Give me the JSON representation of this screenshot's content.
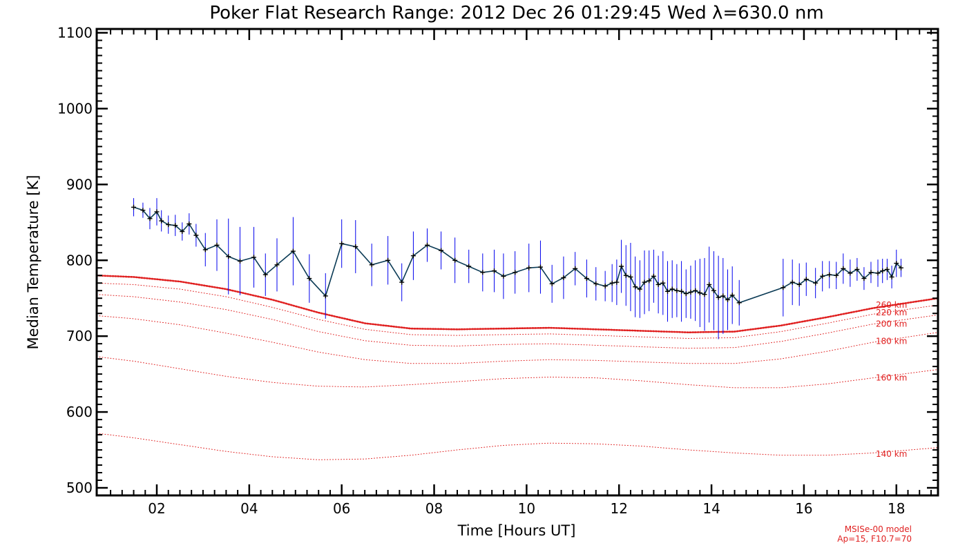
{
  "chart_data": {
    "type": "line",
    "title": "Poker Flat Research Range: 2012 Dec 26 01:29:45 Wed λ=630.0 nm",
    "xlabel": "Time [Hours UT]",
    "ylabel": "Median Temperature [K]",
    "xlim": [
      0.7,
      18.9
    ],
    "ylim": [
      490,
      1105
    ],
    "x_ticks": [
      2,
      4,
      6,
      8,
      10,
      12,
      14,
      16,
      18
    ],
    "x_tick_labels": [
      "02",
      "04",
      "06",
      "08",
      "10",
      "12",
      "14",
      "16",
      "18"
    ],
    "y_ticks": [
      500,
      600,
      700,
      800,
      900,
      1000,
      1100
    ],
    "y_tick_labels": [
      "500",
      "600",
      "700",
      "800",
      "900",
      "1000",
      "1100"
    ],
    "grid": false,
    "colors": {
      "measured": "#0a3a55",
      "error_bars": "#0000ee",
      "model": "#e02020"
    },
    "measured": {
      "x": [
        1.5,
        1.7,
        1.85,
        2.0,
        2.1,
        2.25,
        2.4,
        2.55,
        2.7,
        2.85,
        3.05,
        3.3,
        3.55,
        3.8,
        4.1,
        4.35,
        4.6,
        4.95,
        5.3,
        5.65,
        6.0,
        6.3,
        6.65,
        7.0,
        7.3,
        7.55,
        7.85,
        8.15,
        8.45,
        8.75,
        9.05,
        9.3,
        9.5,
        9.75,
        10.05,
        10.3,
        10.55,
        10.8,
        11.05,
        11.3,
        11.5,
        11.7,
        11.85,
        11.95,
        12.05,
        12.15,
        12.25,
        12.35,
        12.45,
        12.55,
        12.65,
        12.75,
        12.85,
        12.95,
        13.05,
        13.15,
        13.25,
        13.35,
        13.45,
        13.55,
        13.65,
        13.75,
        13.85,
        13.95,
        14.05,
        14.15,
        14.25,
        14.35,
        14.45,
        14.6,
        15.55,
        15.75,
        15.9,
        16.05,
        16.25,
        16.4,
        16.55,
        16.7,
        16.85,
        17.0,
        17.15,
        17.3,
        17.45,
        17.6,
        17.7,
        17.8,
        17.9,
        18.0,
        18.1
      ],
      "y": [
        870,
        866,
        855,
        864,
        852,
        847,
        846,
        838,
        848,
        833,
        814,
        820,
        805,
        799,
        804,
        781,
        794,
        812,
        776,
        753,
        822,
        818,
        794,
        800,
        771,
        806,
        820,
        813,
        800,
        792,
        784,
        786,
        779,
        784,
        790,
        791,
        769,
        777,
        789,
        776,
        769,
        766,
        770,
        771,
        792,
        780,
        778,
        765,
        762,
        771,
        773,
        779,
        768,
        770,
        759,
        762,
        760,
        759,
        756,
        758,
        760,
        757,
        755,
        768,
        760,
        751,
        753,
        748,
        754,
        744,
        764,
        771,
        768,
        775,
        770,
        779,
        781,
        780,
        789,
        783,
        788,
        776,
        784,
        783,
        786,
        788,
        778,
        796,
        790
      ],
      "err": [
        12,
        10,
        14,
        18,
        14,
        12,
        14,
        12,
        14,
        15,
        22,
        34,
        50,
        45,
        40,
        28,
        35,
        45,
        32,
        30,
        32,
        35,
        28,
        32,
        25,
        32,
        22,
        25,
        30,
        22,
        25,
        28,
        30,
        28,
        32,
        35,
        25,
        28,
        22,
        25,
        22,
        20,
        25,
        30,
        35,
        40,
        45,
        40,
        38,
        42,
        40,
        35,
        38,
        42,
        40,
        38,
        35,
        40,
        32,
        35,
        40,
        45,
        48,
        50,
        52,
        55,
        50,
        40,
        38,
        30,
        38,
        30,
        28,
        22,
        20,
        20,
        18,
        18,
        20,
        18,
        15,
        15,
        14,
        18,
        16,
        14,
        15,
        18,
        12
      ]
    },
    "model_curves": [
      {
        "name": "260 km",
        "labels_shown": true,
        "y_at": {
          "x": [
            0.7,
            1.5,
            2.5,
            3.5,
            4.5,
            5.5,
            6.5,
            7.5,
            8.5,
            9.5,
            10.5,
            11.5,
            12.5,
            13.5,
            14.5,
            15.5,
            16.5,
            17.5,
            18.9
          ],
          "y": [
            780,
            778,
            772,
            762,
            748,
            731,
            717,
            710,
            709,
            710,
            711,
            709,
            707,
            705,
            706,
            714,
            725,
            737,
            750
          ]
        }
      },
      {
        "name": "220 km",
        "y_at": {
          "x": [
            0.7,
            1.5,
            2.5,
            3.5,
            4.5,
            5.5,
            6.5,
            7.5,
            8.5,
            9.5,
            10.5,
            11.5,
            12.5,
            13.5,
            14.5,
            15.5,
            16.5,
            17.5,
            18.9
          ],
          "y": [
            770,
            768,
            762,
            752,
            738,
            722,
            709,
            702,
            701,
            702,
            703,
            701,
            699,
            697,
            698,
            706,
            717,
            729,
            741
          ]
        }
      },
      {
        "name": "200 km",
        "y_at": {
          "x": [
            0.7,
            1.5,
            2.5,
            3.5,
            4.5,
            5.5,
            6.5,
            7.5,
            8.5,
            9.5,
            10.5,
            11.5,
            12.5,
            13.5,
            14.5,
            15.5,
            16.5,
            17.5,
            18.9
          ],
          "y": [
            755,
            752,
            745,
            735,
            722,
            706,
            694,
            688,
            687,
            689,
            690,
            688,
            686,
            684,
            685,
            693,
            704,
            716,
            728
          ]
        }
      },
      {
        "name": "180 km",
        "y_at": {
          "x": [
            0.7,
            1.5,
            2.5,
            3.5,
            4.5,
            5.5,
            6.5,
            7.5,
            8.5,
            9.5,
            10.5,
            11.5,
            12.5,
            13.5,
            14.5,
            15.5,
            16.5,
            17.5,
            18.9
          ],
          "y": [
            727,
            723,
            715,
            704,
            692,
            679,
            669,
            664,
            664,
            667,
            669,
            668,
            666,
            664,
            664,
            670,
            680,
            692,
            705
          ]
        }
      },
      {
        "name": "160 km",
        "y_at": {
          "x": [
            0.7,
            1.5,
            2.5,
            3.5,
            4.5,
            5.5,
            6.5,
            7.5,
            8.5,
            9.5,
            10.5,
            11.5,
            12.5,
            13.5,
            14.5,
            15.5,
            16.5,
            17.5,
            18.9
          ],
          "y": [
            673,
            667,
            657,
            647,
            639,
            634,
            633,
            636,
            640,
            644,
            646,
            645,
            641,
            636,
            632,
            632,
            637,
            645,
            656
          ]
        }
      },
      {
        "name": "140 km",
        "y_at": {
          "x": [
            0.7,
            1.5,
            2.5,
            3.5,
            4.5,
            5.5,
            6.5,
            7.5,
            8.5,
            9.5,
            10.5,
            11.5,
            12.5,
            13.5,
            14.5,
            15.5,
            16.5,
            17.5,
            18.9
          ],
          "y": [
            572,
            566,
            557,
            548,
            541,
            537,
            538,
            543,
            550,
            556,
            559,
            558,
            555,
            550,
            546,
            543,
            543,
            546,
            553
          ]
        }
      }
    ],
    "model_labels": [
      "260 km",
      "220 km",
      "200 km",
      "180 km",
      "160 km",
      "140 km"
    ],
    "model_note": [
      "MSISe-00 model",
      "Ap=15, F10.7=70"
    ]
  }
}
